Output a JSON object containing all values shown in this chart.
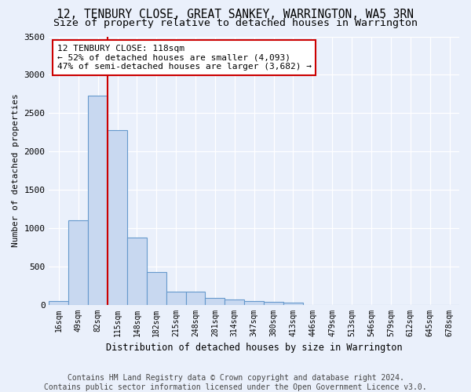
{
  "title": "12, TENBURY CLOSE, GREAT SANKEY, WARRINGTON, WA5 3RN",
  "subtitle": "Size of property relative to detached houses in Warrington",
  "xlabel": "Distribution of detached houses by size in Warrington",
  "ylabel": "Number of detached properties",
  "bar_values": [
    50,
    1100,
    2730,
    2280,
    880,
    425,
    170,
    165,
    90,
    65,
    50,
    35,
    25,
    0,
    0,
    0,
    0,
    0,
    0,
    0,
    0
  ],
  "bin_labels": [
    "16sqm",
    "49sqm",
    "82sqm",
    "115sqm",
    "148sqm",
    "182sqm",
    "215sqm",
    "248sqm",
    "281sqm",
    "314sqm",
    "347sqm",
    "380sqm",
    "413sqm",
    "446sqm",
    "479sqm",
    "513sqm",
    "546sqm",
    "579sqm",
    "612sqm",
    "645sqm",
    "678sqm"
  ],
  "bar_color": "#c8d8f0",
  "bar_edge_color": "#6699cc",
  "vline_color": "#cc0000",
  "annotation_text": "12 TENBURY CLOSE: 118sqm\n← 52% of detached houses are smaller (4,093)\n47% of semi-detached houses are larger (3,682) →",
  "annotation_box_color": "#ffffff",
  "annotation_box_edge_color": "#cc0000",
  "ylim": [
    0,
    3500
  ],
  "yticks": [
    0,
    500,
    1000,
    1500,
    2000,
    2500,
    3000,
    3500
  ],
  "footer_text": "Contains HM Land Registry data © Crown copyright and database right 2024.\nContains public sector information licensed under the Open Government Licence v3.0.",
  "bg_color": "#eaf0fb",
  "grid_color": "#ffffff",
  "title_fontsize": 10.5,
  "subtitle_fontsize": 9.5,
  "annotation_fontsize": 8.0,
  "footer_fontsize": 7.0
}
